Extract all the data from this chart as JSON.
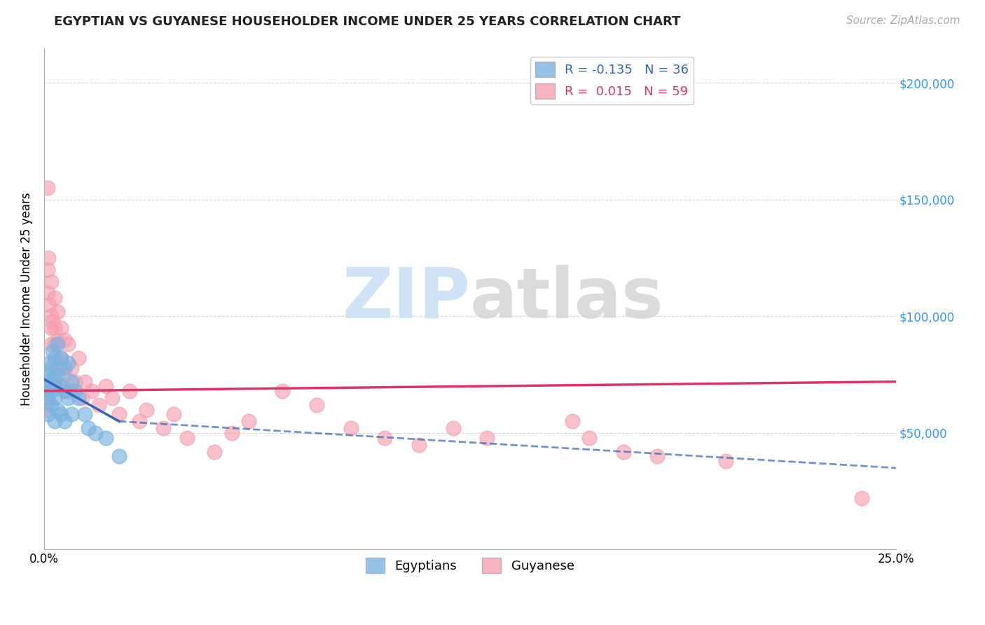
{
  "title": "EGYPTIAN VS GUYANESE HOUSEHOLDER INCOME UNDER 25 YEARS CORRELATION CHART",
  "source": "Source: ZipAtlas.com",
  "ylabel": "Householder Income Under 25 years",
  "egyptian_R": -0.135,
  "egyptian_N": 36,
  "guyanese_R": 0.015,
  "guyanese_N": 59,
  "egyptian_color": "#7ab3e0",
  "guyanese_color": "#f5a0b0",
  "trend_egyptian": "#3366bb",
  "trend_guyanese": "#dd3366",
  "watermark_zip": "ZIP",
  "watermark_atlas": "atlas",
  "background_color": "#ffffff",
  "grid_color": "#cccccc",
  "yticks": [
    0,
    50000,
    100000,
    150000,
    200000
  ],
  "xmin": 0.0,
  "xmax": 0.25,
  "ymin": 0,
  "ymax": 215000,
  "egyptian_x": [
    0.0005,
    0.0008,
    0.001,
    0.001,
    0.001,
    0.0015,
    0.0015,
    0.002,
    0.002,
    0.002,
    0.0025,
    0.003,
    0.003,
    0.003,
    0.003,
    0.003,
    0.004,
    0.004,
    0.004,
    0.005,
    0.005,
    0.005,
    0.006,
    0.006,
    0.006,
    0.007,
    0.007,
    0.008,
    0.008,
    0.009,
    0.01,
    0.012,
    0.013,
    0.015,
    0.018,
    0.022
  ],
  "egyptian_y": [
    68000,
    72000,
    75000,
    65000,
    58000,
    80000,
    70000,
    78000,
    68000,
    62000,
    85000,
    82000,
    75000,
    70000,
    65000,
    55000,
    88000,
    75000,
    60000,
    82000,
    70000,
    58000,
    78000,
    68000,
    55000,
    80000,
    65000,
    72000,
    58000,
    68000,
    65000,
    58000,
    52000,
    50000,
    48000,
    40000
  ],
  "guyanese_x": [
    0.0005,
    0.0008,
    0.001,
    0.001,
    0.001,
    0.0012,
    0.0015,
    0.002,
    0.002,
    0.002,
    0.002,
    0.0025,
    0.003,
    0.003,
    0.003,
    0.003,
    0.003,
    0.004,
    0.004,
    0.004,
    0.005,
    0.005,
    0.005,
    0.006,
    0.006,
    0.007,
    0.007,
    0.008,
    0.009,
    0.01,
    0.011,
    0.012,
    0.014,
    0.016,
    0.018,
    0.02,
    0.022,
    0.025,
    0.028,
    0.03,
    0.035,
    0.038,
    0.042,
    0.05,
    0.055,
    0.06,
    0.07,
    0.08,
    0.09,
    0.1,
    0.11,
    0.12,
    0.13,
    0.155,
    0.16,
    0.17,
    0.18,
    0.2,
    0.24
  ],
  "guyanese_y": [
    60000,
    65000,
    155000,
    120000,
    110000,
    125000,
    105000,
    115000,
    100000,
    95000,
    88000,
    98000,
    108000,
    95000,
    88000,
    80000,
    72000,
    102000,
    90000,
    78000,
    95000,
    82000,
    70000,
    90000,
    75000,
    88000,
    68000,
    78000,
    72000,
    82000,
    65000,
    72000,
    68000,
    62000,
    70000,
    65000,
    58000,
    68000,
    55000,
    60000,
    52000,
    58000,
    48000,
    42000,
    50000,
    55000,
    68000,
    62000,
    52000,
    48000,
    45000,
    52000,
    48000,
    55000,
    48000,
    42000,
    40000,
    38000,
    22000
  ],
  "eg_trend_x0": 0.0,
  "eg_trend_x1": 0.022,
  "eg_trend_x_dash0": 0.022,
  "eg_trend_x_dash1": 0.25,
  "eg_trend_y0": 73000,
  "eg_trend_y1": 55000,
  "eg_trend_y_dash1": 35000,
  "gu_trend_x0": 0.0,
  "gu_trend_x1": 0.25,
  "gu_trend_y0": 68000,
  "gu_trend_y1": 72000
}
